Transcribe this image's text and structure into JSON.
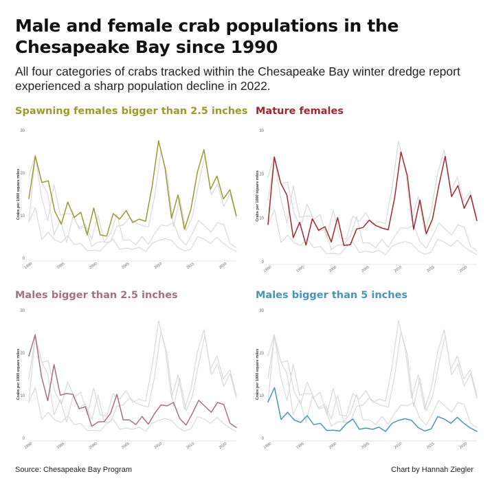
{
  "title": "Male and female crab populations in the Chesapeake Bay since 1990",
  "subtitle": "All four categories of crabs tracked within the Chesapeake Bay winter dredge report experienced a sharp population decline in 2022.",
  "source": "Source: Chesapeake Bay Program",
  "credit": "Chart by Hannah Ziegler",
  "colors": {
    "background_line": "#d9d9d9"
  },
  "chart_data": [
    {
      "type": "line",
      "title": "Spawning females bigger than 2.5 inches",
      "color": "#9a9a2c",
      "highlight": 0,
      "ylabel": "Crabs per 1000 square miles",
      "ylim": [
        0,
        30
      ],
      "yticks": [
        "0",
        "10",
        "20",
        "30"
      ],
      "xlim": [
        1990,
        2022
      ],
      "xticks": [
        "1990",
        "1995",
        "2000",
        "2005",
        "2010",
        "2015",
        "2020"
      ]
    },
    {
      "type": "line",
      "title": "Mature females",
      "color": "#a3262b",
      "highlight": 1,
      "ylabel": "Crabs per 1000 square miles",
      "ylim": [
        0,
        30
      ],
      "yticks": [
        "0",
        "10",
        "20",
        "30"
      ],
      "xlim": [
        1990,
        2022
      ],
      "xticks": [
        "1990",
        "1995",
        "2000",
        "2005",
        "2010",
        "2015",
        "2020"
      ]
    },
    {
      "type": "line",
      "title": "Males bigger than 2.5 inches",
      "color": "#a67080",
      "highlight": 2,
      "ylabel": "Crabs per 1000 square miles",
      "ylim": [
        0,
        30
      ],
      "yticks": [
        "0",
        "10",
        "20",
        "30"
      ],
      "xlim": [
        1990,
        2022
      ],
      "xticks": [
        "1990",
        "1995",
        "2000",
        "2005",
        "2010",
        "2015",
        "2020"
      ]
    },
    {
      "type": "line",
      "title": "Males bigger than 5 inches",
      "color": "#4895b8",
      "highlight": 3,
      "ylabel": "Crabs per 1000 square miles",
      "ylim": [
        0,
        30
      ],
      "yticks": [
        "0",
        "10",
        "20",
        "30"
      ],
      "xlim": [
        1990,
        2022
      ],
      "xticks": [
        "1990",
        "1995",
        "2000",
        "2005",
        "2010",
        "2015",
        "2020"
      ]
    }
  ],
  "series": [
    {
      "values": [
        14,
        24,
        17.8,
        18.2,
        11,
        8,
        13.2,
        9.6,
        10.8,
        5.5,
        11.8,
        5.5,
        5.2,
        10.5,
        9.2,
        11.2,
        8.4,
        9.2,
        8.7,
        16.8,
        27.6,
        21.2,
        9.4,
        14.9,
        6.8,
        11.6,
        20.3,
        25.5,
        16.2,
        19.3,
        13.9,
        16.1,
        10
      ]
    },
    {
      "values": [
        8.5,
        23.9,
        18,
        15.2,
        5.5,
        9,
        3.8,
        9.8,
        7.2,
        8,
        4.5,
        10.1,
        3.7,
        3.9,
        7.5,
        7.8,
        9.5,
        8.3,
        7.7,
        7.3,
        14.5,
        25.1,
        19.7,
        7.4,
        14.1,
        6.4,
        9.8,
        17.5,
        24.1,
        14.9,
        17.4,
        12.2,
        15.2,
        9.4
      ]
    },
    {
      "values": [
        19.3,
        24.3,
        14.5,
        8.8,
        17.3,
        10.1,
        10.5,
        10.3,
        6.9,
        7.4,
        2.8,
        3.8,
        3.9,
        5.9,
        10.3,
        4.3,
        4.3,
        3.2,
        5.1,
        3.3,
        5.8,
        7.8,
        7.6,
        8.4,
        4.6,
        3.1,
        5.8,
        8.9,
        7.5,
        6.1,
        8.4,
        7.9,
        3.5,
        2.5
      ]
    },
    {
      "values": [
        8.5,
        11.9,
        4.4,
        6.1,
        4.3,
        3.7,
        5.3,
        3.2,
        3.5,
        1.8,
        1.9,
        1.7,
        3.4,
        4.5,
        2.1,
        2.4,
        2.1,
        2.6,
        1.6,
        3.5,
        4.2,
        4.6,
        4.2,
        2.5,
        1.7,
        2.2,
        5.1,
        4.5,
        3.5,
        4.9,
        3.5,
        2.4,
        1.6
      ]
    }
  ]
}
